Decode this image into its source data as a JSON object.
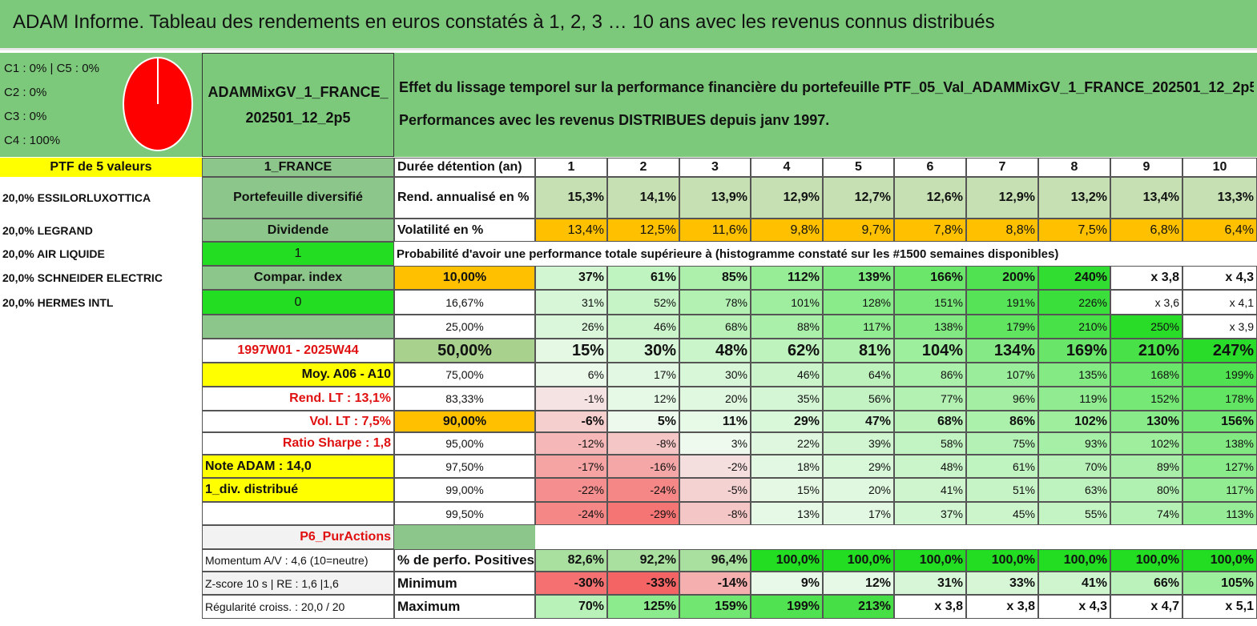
{
  "title": "ADAM Informe. Tableau des rendements en euros constatés à 1, 2, 3 … 10 ans avec les revenus connus distribués",
  "pie": {
    "legend": [
      "C1 : 0% | C5 : 0%",
      "C2 : 0%",
      "C3 : 0%",
      "C4 : 100%"
    ],
    "slices": [
      {
        "name": "C4",
        "value": 100,
        "color": "#ff0000"
      }
    ]
  },
  "portfolio_name": "ADAMMixGV_1_FRANCE_202501_12_2p5",
  "effect_text": "Effet du lissage temporel sur la performance financière du portefeuille PTF_05_Val_ADAMMixGV_1_FRANCE_202501_12_2p5.",
  "perf_text": "Performances avec les revenus DISTRIBUES depuis janv 1997.",
  "left": {
    "header": "PTF de 5 valeurs",
    "holdings": [
      "20,0% ESSILORLUXOTTICA",
      "20,0% LEGRAND",
      "20,0% AIR LIQUIDE",
      "20,0% SCHNEIDER ELECTRIC",
      "20,0% HERMES INTL"
    ]
  },
  "mid": {
    "country": "1_FRANCE",
    "diversified": "Portefeuille diversifié",
    "dividend": "Dividende",
    "dividend_value": "1",
    "compar_index": "Compar. index",
    "compar_value": "0",
    "period": "1997W01 - 2025W44",
    "moy": "Moy. A06 - A10",
    "rend_lt": "Rend. LT : 13,1%",
    "vol_lt": "Vol. LT : 7,5%",
    "sharpe": "Ratio Sharpe : 1,8",
    "note": "Note ADAM : 14,0",
    "div": "1_div. distribué",
    "p6": "P6_PurActions",
    "momentum": "Momentum A/V : 4,6 (10=neutre)",
    "zscore": "Z-score 10 s | RE : 1,6 |1,6",
    "regularite": "Régularité croiss. : 20,0 / 20"
  },
  "table": {
    "duration_label": "Durée détention (an)",
    "years": [
      "1",
      "2",
      "3",
      "4",
      "5",
      "6",
      "7",
      "8",
      "9",
      "10"
    ],
    "rend_label": "Rend. annualisé en %",
    "rend": [
      "15,3%",
      "14,1%",
      "13,9%",
      "12,9%",
      "12,7%",
      "12,6%",
      "12,9%",
      "13,2%",
      "13,4%",
      "13,3%"
    ],
    "vol_label": "Volatilité en %",
    "vol": [
      "13,4%",
      "12,5%",
      "11,6%",
      "9,8%",
      "9,7%",
      "7,8%",
      "8,8%",
      "7,5%",
      "6,8%",
      "6,4%"
    ],
    "prob_text": "Probabilité d'avoir une performance totale supérieure à (histogramme constaté sur les #1500 semaines disponibles)",
    "quantiles": [
      {
        "label": "10,00%",
        "values": [
          "37%",
          "61%",
          "85%",
          "112%",
          "139%",
          "166%",
          "200%",
          "240%",
          "x 3,8",
          "x 4,3"
        ]
      },
      {
        "label": "16,67%",
        "values": [
          "31%",
          "52%",
          "78%",
          "101%",
          "128%",
          "151%",
          "191%",
          "226%",
          "x 3,6",
          "x 4,1"
        ]
      },
      {
        "label": "25,00%",
        "values": [
          "26%",
          "46%",
          "68%",
          "88%",
          "117%",
          "138%",
          "179%",
          "210%",
          "250%",
          "x 3,9"
        ]
      },
      {
        "label": "50,00%",
        "values": [
          "15%",
          "30%",
          "48%",
          "62%",
          "81%",
          "104%",
          "134%",
          "169%",
          "210%",
          "247%"
        ]
      },
      {
        "label": "75,00%",
        "values": [
          "6%",
          "17%",
          "30%",
          "46%",
          "64%",
          "86%",
          "107%",
          "135%",
          "168%",
          "199%"
        ]
      },
      {
        "label": "83,33%",
        "values": [
          "-1%",
          "12%",
          "20%",
          "35%",
          "56%",
          "77%",
          "96%",
          "119%",
          "152%",
          "178%"
        ]
      },
      {
        "label": "90,00%",
        "values": [
          "-6%",
          "5%",
          "11%",
          "29%",
          "47%",
          "68%",
          "86%",
          "102%",
          "130%",
          "156%"
        ]
      },
      {
        "label": "95,00%",
        "values": [
          "-12%",
          "-8%",
          "3%",
          "22%",
          "39%",
          "58%",
          "75%",
          "93%",
          "102%",
          "138%"
        ]
      },
      {
        "label": "97,50%",
        "values": [
          "-17%",
          "-16%",
          "-2%",
          "18%",
          "29%",
          "48%",
          "61%",
          "70%",
          "89%",
          "127%"
        ]
      },
      {
        "label": "99,00%",
        "values": [
          "-22%",
          "-24%",
          "-5%",
          "15%",
          "20%",
          "41%",
          "51%",
          "63%",
          "80%",
          "117%"
        ]
      },
      {
        "label": "99,50%",
        "values": [
          "-24%",
          "-29%",
          "-8%",
          "13%",
          "17%",
          "37%",
          "45%",
          "55%",
          "74%",
          "113%"
        ]
      }
    ],
    "positive_label": "% de perfo. Positives",
    "positive": [
      "82,6%",
      "92,2%",
      "96,4%",
      "100,0%",
      "100,0%",
      "100,0%",
      "100,0%",
      "100,0%",
      "100,0%",
      "100,0%"
    ],
    "min_label": "Minimum",
    "min": [
      "-30%",
      "-33%",
      "-14%",
      "9%",
      "12%",
      "31%",
      "33%",
      "41%",
      "66%",
      "105%"
    ],
    "max_label": "Maximum",
    "max": [
      "70%",
      "125%",
      "159%",
      "199%",
      "213%",
      "x 3,8",
      "x 3,8",
      "x 4,3",
      "x 4,7",
      "x 5,1"
    ]
  },
  "colors": {
    "header_green": "#7dc97b",
    "mid_green": "#8cc68a",
    "bright_green": "#22dd22",
    "yellow": "#ffff00",
    "orange": "#ffc000",
    "rend_green": "#c6e0b4",
    "red_text": "#e01010"
  }
}
